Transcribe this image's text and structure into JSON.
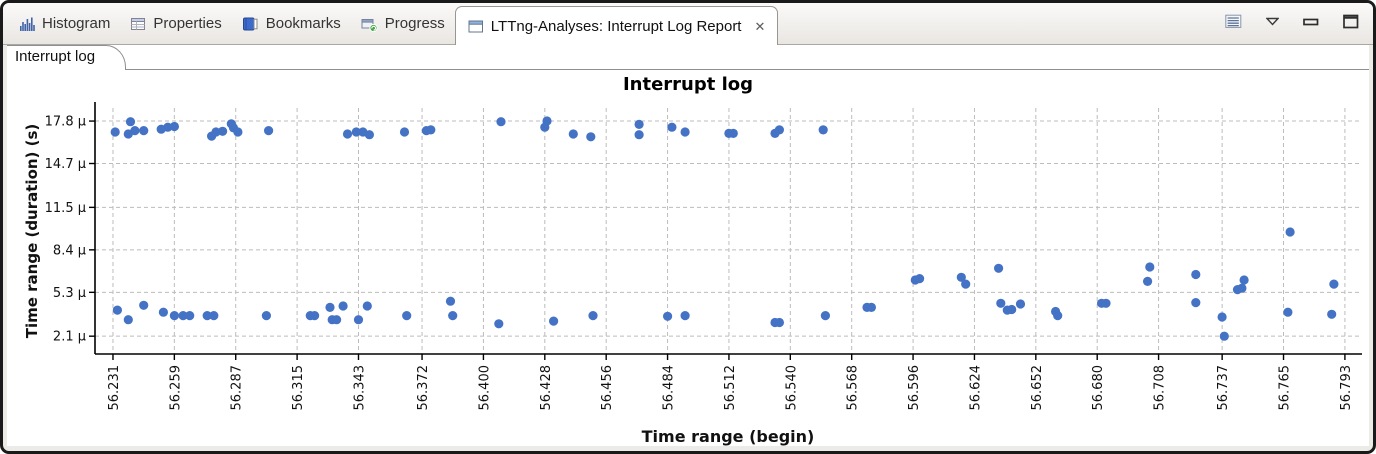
{
  "window": {
    "tabs": [
      {
        "label": "Histogram"
      },
      {
        "label": "Properties"
      },
      {
        "label": "Bookmarks"
      },
      {
        "label": "Progress"
      },
      {
        "label": "LTTng-Analyses: Interrupt Log Report",
        "close_glyph": "✕"
      }
    ]
  },
  "subtab": {
    "label": "Interrupt log"
  },
  "chart_data": {
    "type": "scatter",
    "title": "Interrupt log",
    "xlabel": "Time range (begin)",
    "ylabel": "Time range (duration) (s)",
    "legend": "none",
    "grid": "dashed",
    "point_color": "#4472c4",
    "axis_color": "#000000",
    "grid_color": "#bcbcbc",
    "xlim": [
      56.2228,
      56.8008
    ],
    "ylim_us": [
      0.8,
      18.75
    ],
    "x_ticks": {
      "labels": [
        "56.231",
        "56.259",
        "56.287",
        "56.315",
        "56.343",
        "56.372",
        "56.400",
        "56.428",
        "56.456",
        "56.484",
        "56.512",
        "56.540",
        "56.568",
        "56.596",
        "56.624",
        "56.652",
        "56.680",
        "56.708",
        "56.737",
        "56.765",
        "56.793"
      ],
      "values": [
        56.231,
        56.259,
        56.287,
        56.315,
        56.343,
        56.372,
        56.4,
        56.428,
        56.456,
        56.484,
        56.512,
        56.54,
        56.568,
        56.596,
        56.624,
        56.652,
        56.68,
        56.708,
        56.737,
        56.765,
        56.793
      ]
    },
    "y_ticks": {
      "labels": [
        "17.8 µ",
        "14.7 µ",
        "11.5 µ",
        "8.4 µ",
        "5.3 µ",
        "2.1 µ"
      ],
      "values": [
        17.8,
        14.7,
        11.5,
        8.4,
        5.3,
        2.1
      ]
    },
    "points_us": [
      [
        56.232,
        17.0
      ],
      [
        56.233,
        4.0
      ],
      [
        56.238,
        16.85
      ],
      [
        56.238,
        3.3
      ],
      [
        56.239,
        17.75
      ],
      [
        56.241,
        17.1
      ],
      [
        56.245,
        17.1
      ],
      [
        56.245,
        4.35
      ],
      [
        56.253,
        17.2
      ],
      [
        56.254,
        3.85
      ],
      [
        56.256,
        17.35
      ],
      [
        56.259,
        17.4
      ],
      [
        56.259,
        3.6
      ],
      [
        56.263,
        3.6
      ],
      [
        56.266,
        3.6
      ],
      [
        56.274,
        3.6
      ],
      [
        56.276,
        16.7
      ],
      [
        56.277,
        3.6
      ],
      [
        56.278,
        17.0
      ],
      [
        56.281,
        17.05
      ],
      [
        56.285,
        17.6
      ],
      [
        56.286,
        17.3
      ],
      [
        56.288,
        17.0
      ],
      [
        56.301,
        3.6
      ],
      [
        56.302,
        17.1
      ],
      [
        56.321,
        3.6
      ],
      [
        56.323,
        3.6
      ],
      [
        56.33,
        4.2
      ],
      [
        56.331,
        3.3
      ],
      [
        56.333,
        3.3
      ],
      [
        56.336,
        4.3
      ],
      [
        56.338,
        16.85
      ],
      [
        56.342,
        17.0
      ],
      [
        56.343,
        3.3
      ],
      [
        56.345,
        17.0
      ],
      [
        56.347,
        4.3
      ],
      [
        56.348,
        16.8
      ],
      [
        56.364,
        17.0
      ],
      [
        56.365,
        3.6
      ],
      [
        56.374,
        17.1
      ],
      [
        56.376,
        17.15
      ],
      [
        56.385,
        4.65
      ],
      [
        56.386,
        3.6
      ],
      [
        56.407,
        3.0
      ],
      [
        56.408,
        17.75
      ],
      [
        56.428,
        17.35
      ],
      [
        56.429,
        17.8
      ],
      [
        56.432,
        3.2
      ],
      [
        56.441,
        16.85
      ],
      [
        56.449,
        16.65
      ],
      [
        56.45,
        3.6
      ],
      [
        56.471,
        17.55
      ],
      [
        56.471,
        16.8
      ],
      [
        56.484,
        3.55
      ],
      [
        56.486,
        17.35
      ],
      [
        56.492,
        17.0
      ],
      [
        56.492,
        3.6
      ],
      [
        56.512,
        16.9
      ],
      [
        56.514,
        16.9
      ],
      [
        56.533,
        16.9
      ],
      [
        56.533,
        3.1
      ],
      [
        56.535,
        17.15
      ],
      [
        56.535,
        3.1
      ],
      [
        56.555,
        17.15
      ],
      [
        56.556,
        3.6
      ],
      [
        56.575,
        4.2
      ],
      [
        56.577,
        4.2
      ],
      [
        56.597,
        6.2
      ],
      [
        56.599,
        6.3
      ],
      [
        56.618,
        6.4
      ],
      [
        56.62,
        5.9
      ],
      [
        56.635,
        7.05
      ],
      [
        56.636,
        4.5
      ],
      [
        56.639,
        4.0
      ],
      [
        56.641,
        4.05
      ],
      [
        56.645,
        4.45
      ],
      [
        56.661,
        3.9
      ],
      [
        56.662,
        3.6
      ],
      [
        56.682,
        4.5
      ],
      [
        56.684,
        4.5
      ],
      [
        56.703,
        6.1
      ],
      [
        56.704,
        7.15
      ],
      [
        56.725,
        6.6
      ],
      [
        56.725,
        4.55
      ],
      [
        56.737,
        3.5
      ],
      [
        56.738,
        2.1
      ],
      [
        56.744,
        5.5
      ],
      [
        56.746,
        5.6
      ],
      [
        56.747,
        6.2
      ],
      [
        56.767,
        3.85
      ],
      [
        56.768,
        9.7
      ],
      [
        56.787,
        3.7
      ],
      [
        56.788,
        5.9
      ]
    ]
  }
}
